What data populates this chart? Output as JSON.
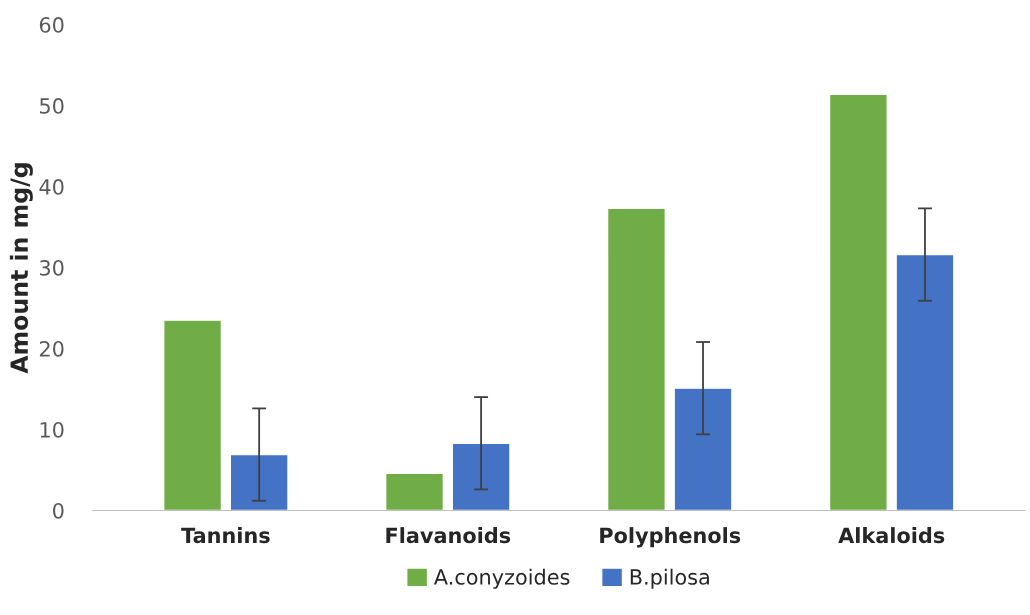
{
  "chart_data": {
    "type": "bar",
    "ylabel": "Amount in mg/g",
    "categories": [
      "Tannins",
      "Flavanoids",
      "Polyphenols",
      "Alkaloids"
    ],
    "series": [
      {
        "name": "A.conyzoides",
        "color": "#70ad47",
        "values": [
          23.5,
          4.6,
          37.3,
          51.4
        ]
      },
      {
        "name": "B.pilosa",
        "color": "#4472c4",
        "values": [
          6.9,
          8.3,
          15.1,
          31.6
        ],
        "errors": [
          5.7,
          5.7,
          5.7,
          5.7
        ]
      }
    ],
    "ylim": [
      0,
      60
    ],
    "yticks": [
      0,
      10,
      20,
      30,
      40,
      50,
      60
    ],
    "grid": false,
    "legend": "bottom"
  }
}
